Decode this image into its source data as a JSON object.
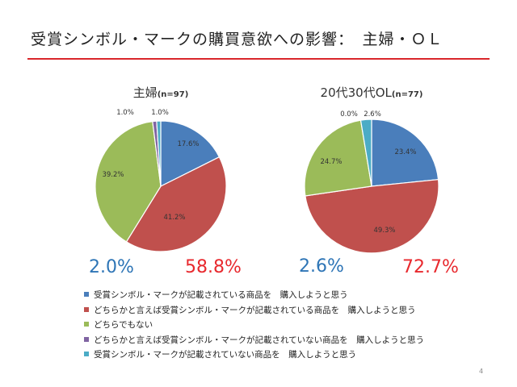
{
  "slide": {
    "title": "受賞シンボル・マークの購買意欲への影響：　主婦・ＯＬ",
    "page_number": "4"
  },
  "colors": {
    "title_rule": "#d9262b",
    "series": [
      "#4a7ebb",
      "#c0504d",
      "#9bbb59",
      "#8064a2",
      "#4bacc6"
    ],
    "blue_text": "#2e75b6",
    "red_text": "#e8292e"
  },
  "chart_data": [
    {
      "type": "pie",
      "title": "主婦",
      "title_note": "(n=97)",
      "categories": [
        "受賞シンボル・マークが記載されている商品を　購入しようと思う",
        "どちらかと言えば受賞シンボル・マークが記載されている商品を　購入しようと思う",
        "どちらでもない",
        "どちらかと言えば受賞シンボル・マークが記載されていない商品を　購入しようと思う",
        "受賞シンボル・マークが記載されていない商品を　購入しようと思う"
      ],
      "values": [
        17.6,
        41.2,
        39.2,
        1.0,
        1.0
      ],
      "labels": [
        "17.6%",
        "41.2%",
        "39.2%",
        "1.0%",
        "1.0%"
      ],
      "summary_left": "2.0%",
      "summary_right": "58.8%"
    },
    {
      "type": "pie",
      "title": "20代30代OL",
      "title_note": "(n=77)",
      "categories": [
        "受賞シンボル・マークが記載されている商品を　購入しようと思う",
        "どちらかと言えば受賞シンボル・マークが記載されている商品を　購入しようと思う",
        "どちらでもない",
        "どちらかと言えば受賞シンボル・マークが記載されていない商品を　購入しようと思う",
        "受賞シンボル・マークが記載されていない商品を　購入しようと思う"
      ],
      "values": [
        23.4,
        49.3,
        24.7,
        0.0,
        2.6
      ],
      "labels": [
        "23.4%",
        "49.3%",
        "24.7%",
        "0.0%",
        "2.6%"
      ],
      "summary_left": "2.6%",
      "summary_right": "72.7%"
    }
  ],
  "legend": {
    "items": [
      "受賞シンボル・マークが記載されている商品を　購入しようと思う",
      "どちらかと言えば受賞シンボル・マークが記載されている商品を　購入しようと思う",
      "どちらでもない",
      "どちらかと言えば受賞シンボル・マークが記載されていない商品を　購入しようと思う",
      "受賞シンボル・マークが記載されていない商品を　購入しようと思う"
    ]
  }
}
